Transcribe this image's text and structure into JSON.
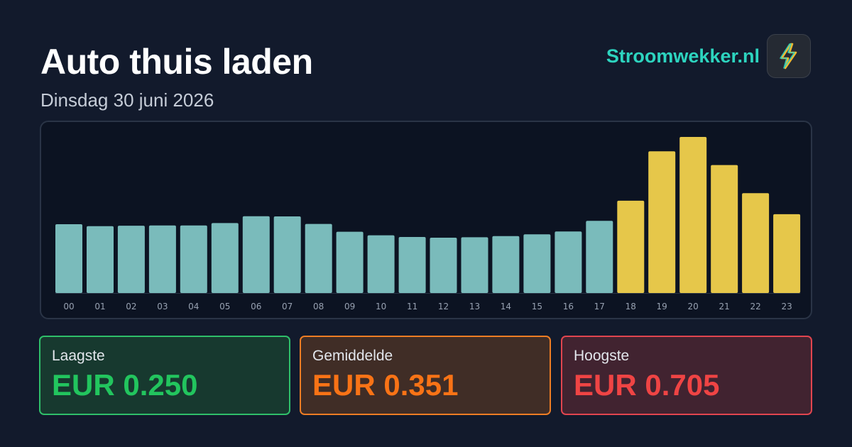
{
  "header": {
    "title": "Auto thuis laden",
    "date": "Dinsdag 30 juni 2026",
    "brand": "Stroomwekker.nl",
    "brand_icon": "lightning-bolt-icon"
  },
  "chart_data": {
    "type": "bar",
    "title": "",
    "xlabel": "",
    "ylabel": "",
    "categories": [
      "00",
      "01",
      "02",
      "03",
      "04",
      "05",
      "06",
      "07",
      "08",
      "09",
      "10",
      "11",
      "12",
      "13",
      "14",
      "15",
      "16",
      "17",
      "18",
      "19",
      "20",
      "21",
      "22",
      "23"
    ],
    "values": [
      0.311,
      0.302,
      0.304,
      0.305,
      0.305,
      0.316,
      0.347,
      0.346,
      0.312,
      0.277,
      0.261,
      0.253,
      0.25,
      0.252,
      0.257,
      0.265,
      0.278,
      0.326,
      0.417,
      0.64,
      0.705,
      0.578,
      0.451,
      0.356
    ],
    "highlight_from_index": 18,
    "colors": {
      "normal": "#7abbbb",
      "highlight": "#e6c74a"
    },
    "ylim": [
      0,
      0.705
    ],
    "grid": false,
    "legend": "none"
  },
  "stats": {
    "low": {
      "label": "Laagste",
      "value": "EUR 0.250",
      "color": "#22c55e"
    },
    "avg": {
      "label": "Gemiddelde",
      "value": "EUR 0.351",
      "color": "#f97316"
    },
    "high": {
      "label": "Hoogste",
      "value": "EUR 0.705",
      "color": "#ef4444"
    }
  }
}
